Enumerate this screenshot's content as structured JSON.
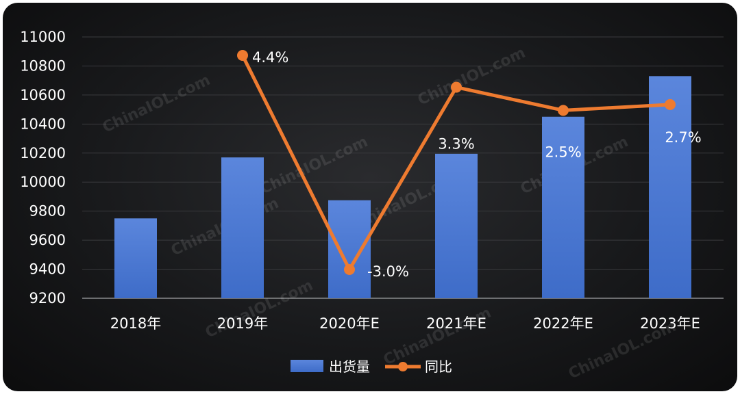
{
  "chart_data": {
    "type": "bar",
    "categories": [
      "2018年",
      "2019年",
      "2020年E",
      "2021年E",
      "2022年E",
      "2023年E"
    ],
    "series": [
      {
        "name": "出货量",
        "type": "bar",
        "axis": "left",
        "color": "#4a78d4",
        "values": [
          9750,
          10170,
          9875,
          10195,
          10450,
          10730
        ]
      },
      {
        "name": "同比",
        "type": "line",
        "axis": "right",
        "color": "#ee7b30",
        "values": [
          null,
          4.4,
          -3.0,
          3.3,
          2.5,
          2.7
        ],
        "labels": [
          "",
          "4.4%",
          "-3.0%",
          "3.3%",
          "2.5%",
          "2.7%"
        ]
      }
    ],
    "yTicks": [
      "11000",
      "10800",
      "10600",
      "10400",
      "10200",
      "10000",
      "9800",
      "9600",
      "9400",
      "9200"
    ],
    "ylim": [
      9200,
      11000
    ],
    "y2lim": [
      -3.0,
      4.4
    ],
    "grid": true,
    "legend": "bottom",
    "watermark": "ChinaIOL.com"
  }
}
